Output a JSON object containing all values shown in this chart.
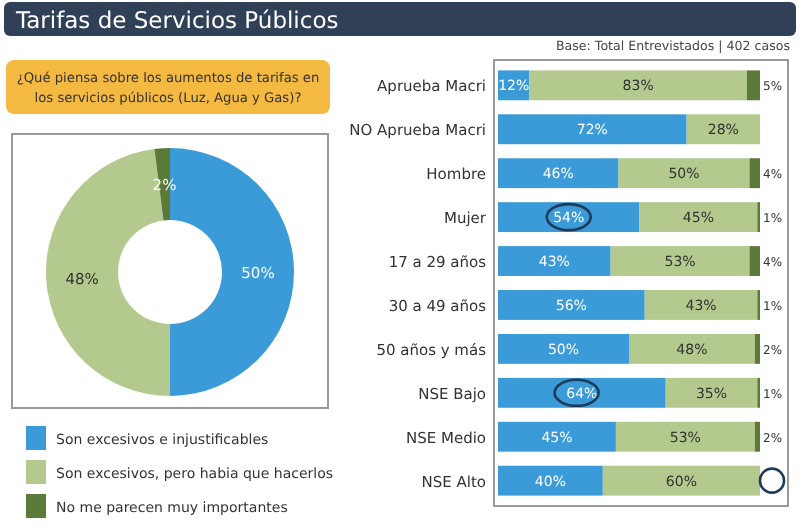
{
  "chart_data": [
    {
      "type": "donut",
      "title": "Tarifas de Servicios Públicos",
      "subtitle": "¿Qué piensa sobre los aumentos de tarifas en los servicios públicos (Luz, Agua y Gas)?",
      "categories": [
        "Son excesivos e injustificables",
        "Son excesivos, pero habia que hacerlos",
        "No me parecen muy importantes"
      ],
      "values": [
        50,
        48,
        2
      ],
      "value_labels": [
        "50%",
        "48%",
        "2%"
      ],
      "colors": [
        "#3b9bd8",
        "#b3c98d",
        "#5b7a3a"
      ],
      "legend": "bottom"
    },
    {
      "type": "bar",
      "orientation": "horizontal",
      "stacked": true,
      "annotations": [
        "Base: Total Entrevistados | 402 casos"
      ],
      "categories": [
        "Aprueba Macri",
        "NO Aprueba Macri",
        "Hombre",
        "Mujer",
        "17 a 29 años",
        "30 a 49 años",
        "50 años y más",
        "NSE Bajo",
        "NSE Medio",
        "NSE Alto"
      ],
      "legend": false,
      "series": [
        {
          "color": "#3b9bd8",
          "values": [
            12,
            72,
            46,
            54,
            43,
            56,
            50,
            64,
            45,
            40
          ],
          "value_labels": [
            "12%",
            "72%",
            "46%",
            "54%",
            "43%",
            "56%",
            "50%",
            "64%",
            "45%",
            "40%"
          ]
        },
        {
          "color": "#b3c98d",
          "values": [
            83,
            28,
            50,
            45,
            53,
            43,
            48,
            35,
            53,
            60
          ],
          "value_labels": [
            "83%",
            "28%",
            "50%",
            "45%",
            "53%",
            "43%",
            "48%",
            "35%",
            "53%",
            "60%"
          ]
        },
        {
          "color": "#5b7a3a",
          "values": [
            5,
            0,
            4,
            1,
            4,
            1,
            2,
            1,
            2,
            0
          ],
          "value_labels": [
            "5%",
            null,
            "4%",
            "1%",
            "4%",
            "1%",
            "2%",
            "1%",
            "2%",
            null
          ]
        }
      ]
    }
  ]
}
